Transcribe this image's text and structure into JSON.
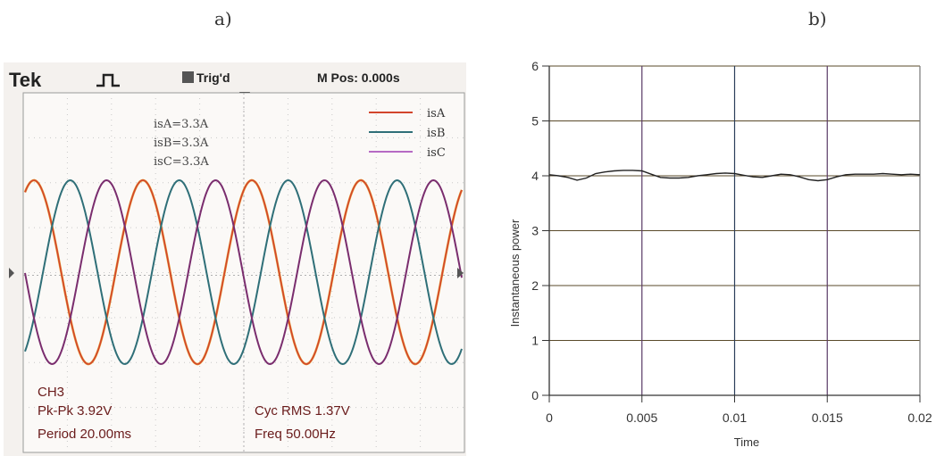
{
  "labels": {
    "a": "a)",
    "b": "b)"
  },
  "scope": {
    "brand": "Tek",
    "trigger": "Trig'd",
    "mpos": "M Pos: 0.000s",
    "scales": [
      "isA=3.3A",
      "isB=3.3A",
      "isC=3.3A"
    ],
    "legend": [
      {
        "name": "isA",
        "color": "#d2452c"
      },
      {
        "name": "isB",
        "color": "#2f6f78"
      },
      {
        "name": "isC",
        "color": "#b66ac4"
      }
    ],
    "measure": {
      "channel": "CH3",
      "pkpk": "Pk-Pk 3.92V",
      "period": "Period 20.00ms",
      "cycrms": "Cyc RMS 1.37V",
      "freq": "Freq 50.00Hz"
    },
    "colors": {
      "isA": "#d2452c",
      "isA2": "#e8a43a",
      "isB": "#2f6f78",
      "isC": "#7a2d6e"
    }
  },
  "chart_data": [
    {
      "type": "line",
      "title": "",
      "xlabel": "",
      "ylabel": "",
      "series": [
        {
          "name": "isA",
          "frequency_hz": 50,
          "phase_deg": 0,
          "amplitude_pkpk_v": 3.92
        },
        {
          "name": "isB",
          "frequency_hz": 50,
          "phase_deg": -120,
          "amplitude_pkpk_v": 3.92
        },
        {
          "name": "isC",
          "frequency_hz": 50,
          "phase_deg": 120,
          "amplitude_pkpk_v": 3.92
        }
      ],
      "grid": true
    },
    {
      "type": "line",
      "title": "",
      "xlabel": "Time",
      "ylabel": "Instantaneous power",
      "xlim": [
        0,
        0.02
      ],
      "ylim": [
        0,
        6
      ],
      "xticks": [
        "0",
        "0.005",
        "0.01",
        "0.015",
        "0.02"
      ],
      "yticks": [
        "0",
        "1",
        "2",
        "3",
        "4",
        "5",
        "6"
      ],
      "x": [
        0,
        0.0005,
        0.001,
        0.0015,
        0.002,
        0.0025,
        0.003,
        0.0035,
        0.004,
        0.0045,
        0.005,
        0.0055,
        0.006,
        0.0065,
        0.007,
        0.0075,
        0.008,
        0.0085,
        0.009,
        0.0095,
        0.01,
        0.0105,
        0.011,
        0.0115,
        0.012,
        0.0125,
        0.013,
        0.0135,
        0.014,
        0.0145,
        0.015,
        0.0155,
        0.016,
        0.0165,
        0.017,
        0.0175,
        0.018,
        0.0185,
        0.019,
        0.0195,
        0.02
      ],
      "series": [
        {
          "name": "",
          "values": [
            4.02,
            4.0,
            3.97,
            3.92,
            3.96,
            4.04,
            4.07,
            4.09,
            4.1,
            4.1,
            4.09,
            4.03,
            3.97,
            3.96,
            3.96,
            3.97,
            4.0,
            4.02,
            4.04,
            4.05,
            4.04,
            4.01,
            3.98,
            3.97,
            4.0,
            4.03,
            4.02,
            3.98,
            3.93,
            3.91,
            3.93,
            3.98,
            4.02,
            4.03,
            4.03,
            4.03,
            4.04,
            4.03,
            4.02,
            4.03,
            4.02
          ]
        }
      ],
      "grid": true
    }
  ]
}
